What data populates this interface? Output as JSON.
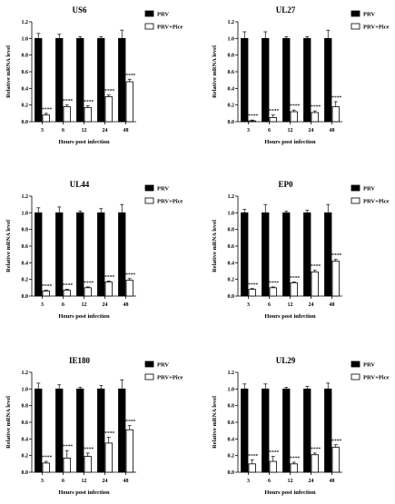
{
  "colors": {
    "prv": "#000000",
    "prv_pice": "#ffffff",
    "stroke": "#000000"
  },
  "chart_data": [
    {
      "type": "bar",
      "title": "US6",
      "xlabel": "Hours post infection",
      "ylabel": "Relative mRNA level",
      "ylim": [
        0,
        1.2
      ],
      "yticks": [
        "0.0",
        "0.2",
        "0.4",
        "0.6",
        "0.8",
        "1.0",
        "1.2"
      ],
      "categories": [
        "3",
        "6",
        "12",
        "24",
        "48"
      ],
      "series": [
        {
          "name": "PRV",
          "values": [
            1.0,
            1.0,
            1.0,
            1.0,
            1.0
          ],
          "errors": [
            0.06,
            0.05,
            0.02,
            0.02,
            0.1
          ]
        },
        {
          "name": "PRV+Pice",
          "values": [
            0.08,
            0.18,
            0.17,
            0.3,
            0.48
          ],
          "errors": [
            0.02,
            0.02,
            0.02,
            0.02,
            0.03
          ]
        }
      ],
      "significance": [
        "****",
        "****",
        "****",
        "****",
        "****"
      ]
    },
    {
      "type": "bar",
      "title": "UL27",
      "xlabel": "Hours post infection",
      "ylabel": "Relative mRNA level",
      "ylim": [
        0,
        1.2
      ],
      "yticks": [
        "0.0",
        "0.2",
        "0.4",
        "0.6",
        "0.8",
        "1.0",
        "1.2"
      ],
      "categories": [
        "3",
        "6",
        "12",
        "24",
        "48"
      ],
      "series": [
        {
          "name": "PRV",
          "values": [
            1.0,
            1.0,
            1.0,
            1.0,
            1.0
          ],
          "errors": [
            0.08,
            0.08,
            0.02,
            0.02,
            0.1
          ]
        },
        {
          "name": "PRV+Pice",
          "values": [
            0.01,
            0.05,
            0.12,
            0.11,
            0.18
          ],
          "errors": [
            0.01,
            0.03,
            0.02,
            0.02,
            0.06
          ]
        }
      ],
      "significance": [
        "****",
        "****",
        "****",
        "****",
        "****"
      ]
    },
    {
      "type": "bar",
      "title": "UL44",
      "xlabel": "Hours post infection",
      "ylabel": "Relative mRNA level",
      "ylim": [
        0,
        1.2
      ],
      "yticks": [
        "0.0",
        "0.2",
        "0.4",
        "0.6",
        "0.8",
        "1.0",
        "1.2"
      ],
      "categories": [
        "3",
        "6",
        "12",
        "24",
        "48"
      ],
      "series": [
        {
          "name": "PRV",
          "values": [
            1.0,
            1.0,
            1.0,
            1.0,
            1.0
          ],
          "errors": [
            0.06,
            0.07,
            0.02,
            0.05,
            0.1
          ]
        },
        {
          "name": "PRV+Pice",
          "values": [
            0.06,
            0.07,
            0.1,
            0.17,
            0.19
          ],
          "errors": [
            0.01,
            0.01,
            0.01,
            0.01,
            0.02
          ]
        }
      ],
      "significance": [
        "****",
        "****",
        "****",
        "****",
        "****"
      ]
    },
    {
      "type": "bar",
      "title": "EP0",
      "xlabel": "Hours post infection",
      "ylabel": "Relative mRNA level",
      "ylim": [
        0,
        1.2
      ],
      "yticks": [
        "0.0",
        "0.2",
        "0.4",
        "0.6",
        "0.8",
        "1.0",
        "1.2"
      ],
      "categories": [
        "3",
        "6",
        "12",
        "24",
        "48"
      ],
      "series": [
        {
          "name": "PRV",
          "values": [
            1.0,
            1.0,
            1.0,
            1.0,
            1.0
          ],
          "errors": [
            0.04,
            0.1,
            0.02,
            0.03,
            0.1
          ]
        },
        {
          "name": "PRV+Pice",
          "values": [
            0.08,
            0.1,
            0.16,
            0.29,
            0.42
          ],
          "errors": [
            0.01,
            0.01,
            0.01,
            0.02,
            0.02
          ]
        }
      ],
      "significance": [
        "****",
        "****",
        "****",
        "****",
        "****"
      ]
    },
    {
      "type": "bar",
      "title": "IE180",
      "xlabel": "Hours post infection",
      "ylabel": "Relative mRNA level",
      "ylim": [
        0,
        1.2
      ],
      "yticks": [
        "0.0",
        "0.2",
        "0.4",
        "0.6",
        "0.8",
        "1.0",
        "1.2"
      ],
      "categories": [
        "3",
        "6",
        "12",
        "24",
        "48"
      ],
      "series": [
        {
          "name": "PRV",
          "values": [
            1.0,
            1.0,
            1.0,
            1.0,
            1.0
          ],
          "errors": [
            0.07,
            0.05,
            0.02,
            0.04,
            0.11
          ]
        },
        {
          "name": "PRV+Pice",
          "values": [
            0.11,
            0.17,
            0.19,
            0.35,
            0.51
          ],
          "errors": [
            0.02,
            0.09,
            0.04,
            0.07,
            0.05
          ]
        }
      ],
      "significance": [
        "****",
        "****",
        "****",
        "****",
        "****"
      ]
    },
    {
      "type": "bar",
      "title": "UL29",
      "xlabel": "Hours post infection",
      "ylabel": "Relative mRNA level",
      "ylim": [
        0,
        1.2
      ],
      "yticks": [
        "0.0",
        "0.2",
        "0.4",
        "0.6",
        "0.8",
        "1.0",
        "1.2"
      ],
      "categories": [
        "3",
        "6",
        "12",
        "24",
        "48"
      ],
      "series": [
        {
          "name": "PRV",
          "values": [
            1.0,
            1.0,
            1.0,
            1.0,
            1.0
          ],
          "errors": [
            0.06,
            0.06,
            0.02,
            0.03,
            0.07
          ]
        },
        {
          "name": "PRV+Pice",
          "values": [
            0.1,
            0.13,
            0.1,
            0.21,
            0.3
          ],
          "errors": [
            0.05,
            0.06,
            0.02,
            0.02,
            0.03
          ]
        }
      ],
      "significance": [
        "****",
        "****",
        "****",
        "****",
        "****"
      ]
    }
  ]
}
